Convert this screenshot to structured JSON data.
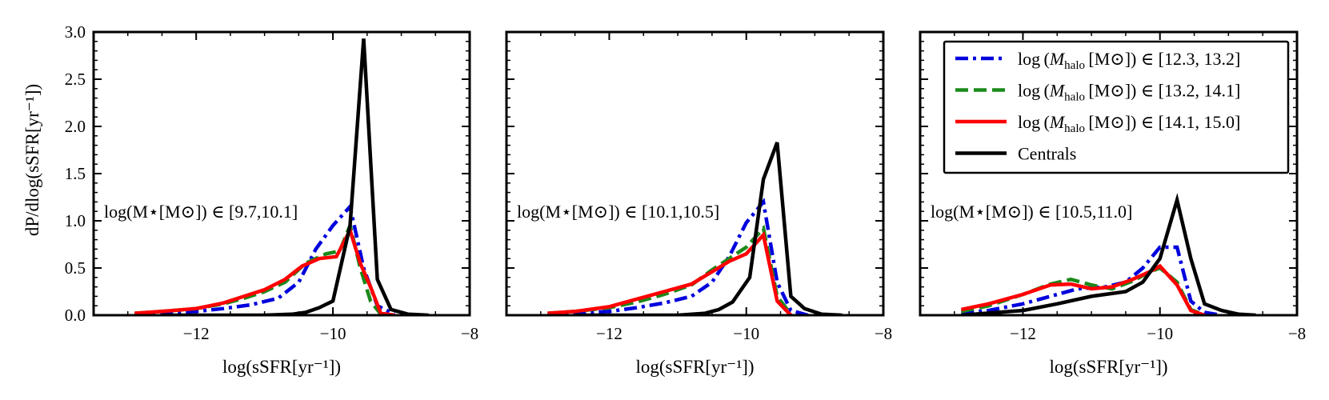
{
  "chart_data": [
    {
      "type": "line",
      "panel": "left",
      "xlabel": "log(sSFR[yr⁻¹])",
      "ylabel": "dP/dlog(sSFR[yr⁻¹])",
      "xlim": [
        -13.5,
        -8
      ],
      "ylim": [
        0,
        3.0
      ],
      "xticks": [
        "−12",
        "−10",
        "−8"
      ],
      "yticks": [
        "0.0",
        "0.5",
        "1.0",
        "1.5",
        "2.0",
        "2.5",
        "3.0"
      ],
      "annotation": "log(M⋆[M⊙]) ∈ [9.7,10.1]",
      "series": [
        {
          "name": "log(Mhalo [M⊙]) ∈ [12.3, 13.2]",
          "color": "#0000dd",
          "style": "dashdot",
          "x": [
            -12.9,
            -12.5,
            -12.0,
            -11.6,
            -11.2,
            -10.8,
            -10.5,
            -10.25,
            -10.0,
            -9.75,
            -9.55,
            -9.35,
            -9.1
          ],
          "y": [
            0.01,
            0.02,
            0.04,
            0.07,
            0.11,
            0.18,
            0.35,
            0.7,
            0.95,
            1.15,
            0.5,
            0.1,
            0.01
          ]
        },
        {
          "name": "log(Mhalo [M⊙]) ∈ [13.2, 14.1]",
          "color": "#1a8a1a",
          "style": "dashed",
          "x": [
            -12.9,
            -12.5,
            -12.0,
            -11.6,
            -11.3,
            -11.0,
            -10.7,
            -10.4,
            -10.1,
            -9.9,
            -9.75,
            -9.6,
            -9.45,
            -9.3
          ],
          "y": [
            0.02,
            0.04,
            0.07,
            0.12,
            0.18,
            0.25,
            0.35,
            0.55,
            0.65,
            0.68,
            0.95,
            0.5,
            0.15,
            0.01
          ]
        },
        {
          "name": "log(Mhalo [M⊙]) ∈ [14.1, 15.0]",
          "color": "#ff0000",
          "style": "solid",
          "x": [
            -12.9,
            -12.5,
            -12.0,
            -11.6,
            -11.3,
            -11.0,
            -10.7,
            -10.45,
            -10.2,
            -9.95,
            -9.75,
            -9.6,
            -9.45,
            -9.3,
            -9.1
          ],
          "y": [
            0.02,
            0.04,
            0.07,
            0.13,
            0.2,
            0.27,
            0.38,
            0.52,
            0.6,
            0.62,
            0.9,
            0.55,
            0.3,
            0.02,
            0.0
          ]
        },
        {
          "name": "Centrals",
          "color": "#000000",
          "style": "solid",
          "x": [
            -12.5,
            -11.0,
            -10.6,
            -10.4,
            -10.2,
            -10.0,
            -9.75,
            -9.55,
            -9.35,
            -9.15,
            -8.9,
            -8.6
          ],
          "y": [
            0.0,
            0.0,
            0.01,
            0.03,
            0.08,
            0.15,
            0.95,
            2.93,
            0.38,
            0.06,
            0.01,
            0.0
          ]
        }
      ]
    },
    {
      "type": "line",
      "panel": "middle",
      "xlabel": "log(sSFR[yr⁻¹])",
      "xlim": [
        -13.5,
        -8
      ],
      "ylim": [
        0,
        3.0
      ],
      "xticks": [
        "−12",
        "−10",
        "−8"
      ],
      "annotation": "log(M⋆[M⊙]) ∈ [10.1,10.5]",
      "series": [
        {
          "name": "log(Mhalo [M⊙]) ∈ [12.3, 13.2]",
          "color": "#0000dd",
          "style": "dashdot",
          "x": [
            -12.9,
            -12.5,
            -12.0,
            -11.6,
            -11.2,
            -10.8,
            -10.5,
            -10.25,
            -10.0,
            -9.75,
            -9.55,
            -9.35,
            -9.1
          ],
          "y": [
            0.01,
            0.02,
            0.04,
            0.08,
            0.13,
            0.2,
            0.35,
            0.62,
            0.98,
            1.2,
            0.35,
            0.05,
            0.0
          ]
        },
        {
          "name": "log(Mhalo [M⊙]) ∈ [13.2, 14.1]",
          "color": "#1a8a1a",
          "style": "dashed",
          "x": [
            -12.9,
            -12.5,
            -12.0,
            -11.6,
            -11.2,
            -10.8,
            -10.5,
            -10.25,
            -10.0,
            -9.75,
            -9.55,
            -9.35
          ],
          "y": [
            0.02,
            0.04,
            0.08,
            0.14,
            0.22,
            0.32,
            0.48,
            0.6,
            0.72,
            0.92,
            0.2,
            0.01
          ]
        },
        {
          "name": "log(Mhalo [M⊙]) ∈ [14.1, 15.0]",
          "color": "#ff0000",
          "style": "solid",
          "x": [
            -12.9,
            -12.5,
            -12.0,
            -11.6,
            -11.2,
            -10.8,
            -10.5,
            -10.25,
            -10.0,
            -9.75,
            -9.55,
            -9.35
          ],
          "y": [
            0.02,
            0.04,
            0.09,
            0.17,
            0.25,
            0.33,
            0.46,
            0.57,
            0.65,
            0.85,
            0.15,
            0.0
          ]
        },
        {
          "name": "Centrals",
          "color": "#000000",
          "style": "solid",
          "x": [
            -12.5,
            -11.0,
            -10.6,
            -10.4,
            -10.2,
            -9.95,
            -9.75,
            -9.55,
            -9.35,
            -9.15,
            -8.9,
            -8.6
          ],
          "y": [
            0.0,
            0.0,
            0.02,
            0.06,
            0.14,
            0.4,
            1.44,
            1.83,
            0.2,
            0.07,
            0.01,
            0.0
          ]
        }
      ]
    },
    {
      "type": "line",
      "panel": "right",
      "xlabel": "log(sSFR[yr⁻¹])",
      "xlim": [
        -13.5,
        -8
      ],
      "ylim": [
        0,
        3.0
      ],
      "xticks": [
        "−12",
        "−10",
        "−8"
      ],
      "annotation": "log(M⋆[M⊙]) ∈ [10.5,11.0]",
      "legend": {
        "placement": "top-right",
        "entries": [
          {
            "label_main": "log (",
            "label_sub": "halo",
            "label_rest": " [M⊙]) ∈ [12.3, 13.2]",
            "color": "#0000dd",
            "style": "dashdot"
          },
          {
            "label_main": "log (",
            "label_sub": "halo",
            "label_rest": " [M⊙]) ∈ [13.2, 14.1]",
            "color": "#1a8a1a",
            "style": "dashed"
          },
          {
            "label_main": "log (",
            "label_sub": "halo",
            "label_rest": " [M⊙]) ∈ [14.1, 15.0]",
            "color": "#ff0000",
            "style": "solid"
          },
          {
            "label_main": "Centrals",
            "label_sub": "",
            "label_rest": "",
            "color": "#000000",
            "style": "solid"
          }
        ]
      },
      "series": [
        {
          "name": "log(Mhalo [M⊙]) ∈ [12.3, 13.2]",
          "color": "#0000dd",
          "style": "dashdot",
          "x": [
            -12.9,
            -12.5,
            -12.0,
            -11.6,
            -11.2,
            -10.8,
            -10.5,
            -10.25,
            -10.0,
            -9.75,
            -9.55,
            -9.35,
            -9.1
          ],
          "y": [
            0.02,
            0.05,
            0.12,
            0.2,
            0.28,
            0.3,
            0.35,
            0.5,
            0.72,
            0.72,
            0.15,
            0.03,
            0.0
          ]
        },
        {
          "name": "log(Mhalo [M⊙]) ∈ [13.2, 14.1]",
          "color": "#1a8a1a",
          "style": "dashed",
          "x": [
            -12.9,
            -12.5,
            -12.0,
            -11.6,
            -11.3,
            -11.0,
            -10.7,
            -10.4,
            -10.15,
            -10.0,
            -9.75,
            -9.55,
            -9.35
          ],
          "y": [
            0.04,
            0.1,
            0.22,
            0.33,
            0.38,
            0.32,
            0.28,
            0.36,
            0.46,
            0.5,
            0.35,
            0.06,
            0.0
          ]
        },
        {
          "name": "log(Mhalo [M⊙]) ∈ [14.1, 15.0]",
          "color": "#ff0000",
          "style": "solid",
          "x": [
            -12.9,
            -12.5,
            -12.0,
            -11.6,
            -11.3,
            -11.0,
            -10.7,
            -10.4,
            -10.15,
            -10.0,
            -9.75,
            -9.55,
            -9.35
          ],
          "y": [
            0.06,
            0.12,
            0.22,
            0.32,
            0.33,
            0.28,
            0.3,
            0.38,
            0.46,
            0.52,
            0.32,
            0.05,
            0.0
          ]
        },
        {
          "name": "Centrals",
          "color": "#000000",
          "style": "solid",
          "x": [
            -12.9,
            -12.0,
            -11.5,
            -11.0,
            -10.8,
            -10.5,
            -10.25,
            -10.0,
            -9.75,
            -9.55,
            -9.35,
            -9.1,
            -8.85,
            -8.6
          ],
          "y": [
            0.0,
            0.05,
            0.12,
            0.2,
            0.22,
            0.25,
            0.35,
            0.6,
            1.22,
            0.6,
            0.12,
            0.05,
            0.01,
            0.0
          ]
        }
      ]
    }
  ]
}
